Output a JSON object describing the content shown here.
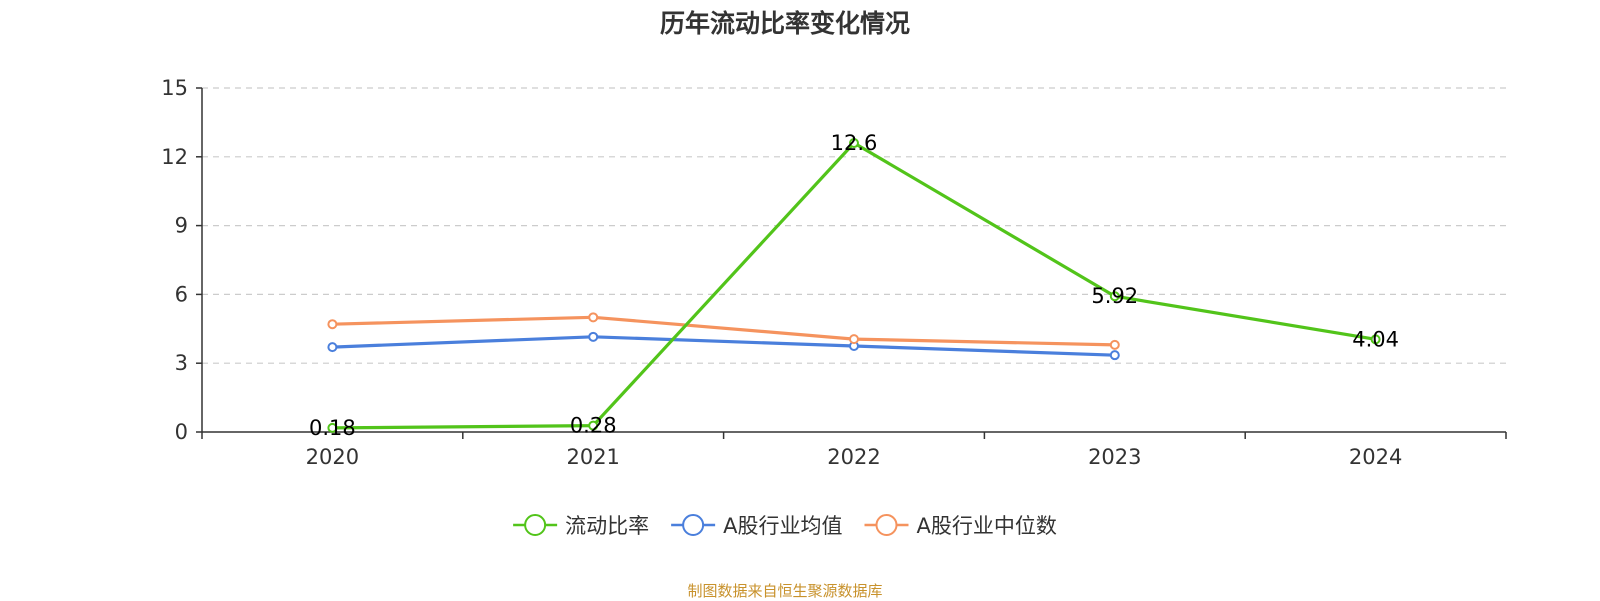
{
  "chart_data": {
    "type": "line",
    "title": "历年流动比率变化情况",
    "categories": [
      "2020",
      "2021",
      "2022",
      "2023",
      "2024"
    ],
    "ylim": [
      0,
      15
    ],
    "yticks": [
      0,
      3,
      6,
      9,
      12,
      15
    ],
    "grid": true,
    "legend_position": "bottom",
    "series": [
      {
        "name": "流动比率",
        "color": "#52c41a",
        "values": [
          0.18,
          0.28,
          12.6,
          5.92,
          4.04
        ],
        "labels": [
          "0.18",
          "0.28",
          "12.6",
          "5.92",
          "4.04"
        ]
      },
      {
        "name": "A股行业均值",
        "color": "#4a7fdc",
        "values": [
          3.7,
          4.15,
          3.75,
          3.35,
          null
        ]
      },
      {
        "name": "A股行业中位数",
        "color": "#f5935e",
        "values": [
          4.7,
          5.0,
          4.05,
          3.8,
          null
        ]
      }
    ]
  },
  "source": "制图数据来自恒生聚源数据库"
}
